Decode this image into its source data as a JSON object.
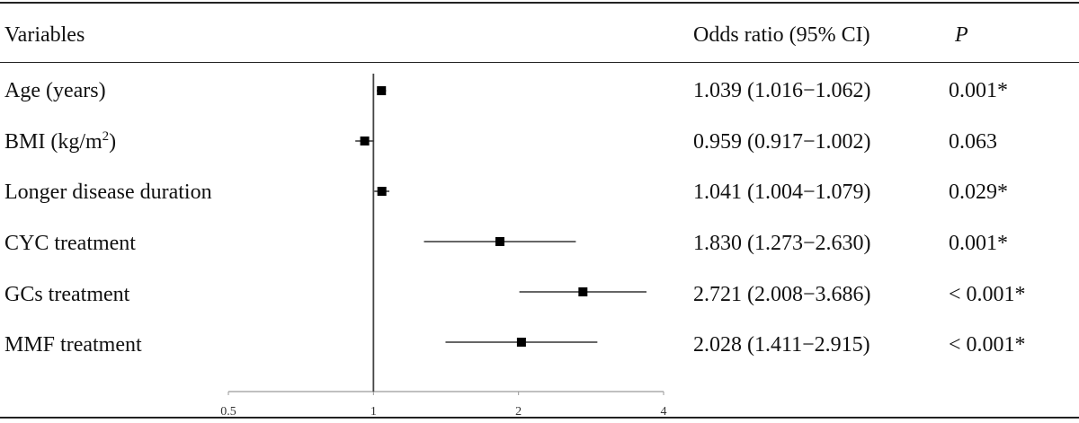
{
  "table": {
    "header": {
      "variables": "Variables",
      "or_ci": "Odds ratio (95% CI)",
      "p": "P"
    },
    "rows": [
      {
        "label": "Age (years)",
        "or_ci": "1.039 (1.016−1.062)",
        "p": "0.001*"
      },
      {
        "label_main": "BMI (kg/m",
        "label_sup": "2",
        "label_end": ")",
        "or_ci": "0.959 (0.917−1.002)",
        "p": "0.063"
      },
      {
        "label": "Longer disease duration",
        "or_ci": "1.041 (1.004−1.079)",
        "p": "0.029*"
      },
      {
        "label": "CYC treatment",
        "or_ci": "1.830 (1.273−2.630)",
        "p": "0.001*"
      },
      {
        "label": "GCs treatment",
        "or_ci": "2.721 (2.008−3.686)",
        "p": "< 0.001*"
      },
      {
        "label": "MMF treatment",
        "or_ci": "2.028 (1.411−2.915)",
        "p": "< 0.001*"
      }
    ]
  },
  "chart_data": {
    "type": "forest",
    "scale": "log2",
    "reference_line": 1,
    "xlim": [
      0.5,
      4
    ],
    "x_ticks": [
      "0.5",
      "1",
      "2",
      "4"
    ],
    "series": [
      {
        "label": "Age (years)",
        "or": 1.039,
        "lo": 1.016,
        "hi": 1.062
      },
      {
        "label": "BMI (kg/m2)",
        "or": 0.959,
        "lo": 0.917,
        "hi": 1.002
      },
      {
        "label": "Longer disease duration",
        "or": 1.041,
        "lo": 1.004,
        "hi": 1.079
      },
      {
        "label": "CYC treatment",
        "or": 1.83,
        "lo": 1.273,
        "hi": 2.63
      },
      {
        "label": "GCs treatment",
        "or": 2.721,
        "lo": 2.008,
        "hi": 3.686
      },
      {
        "label": "MMF treatment",
        "or": 2.028,
        "lo": 1.411,
        "hi": 2.915
      }
    ]
  }
}
